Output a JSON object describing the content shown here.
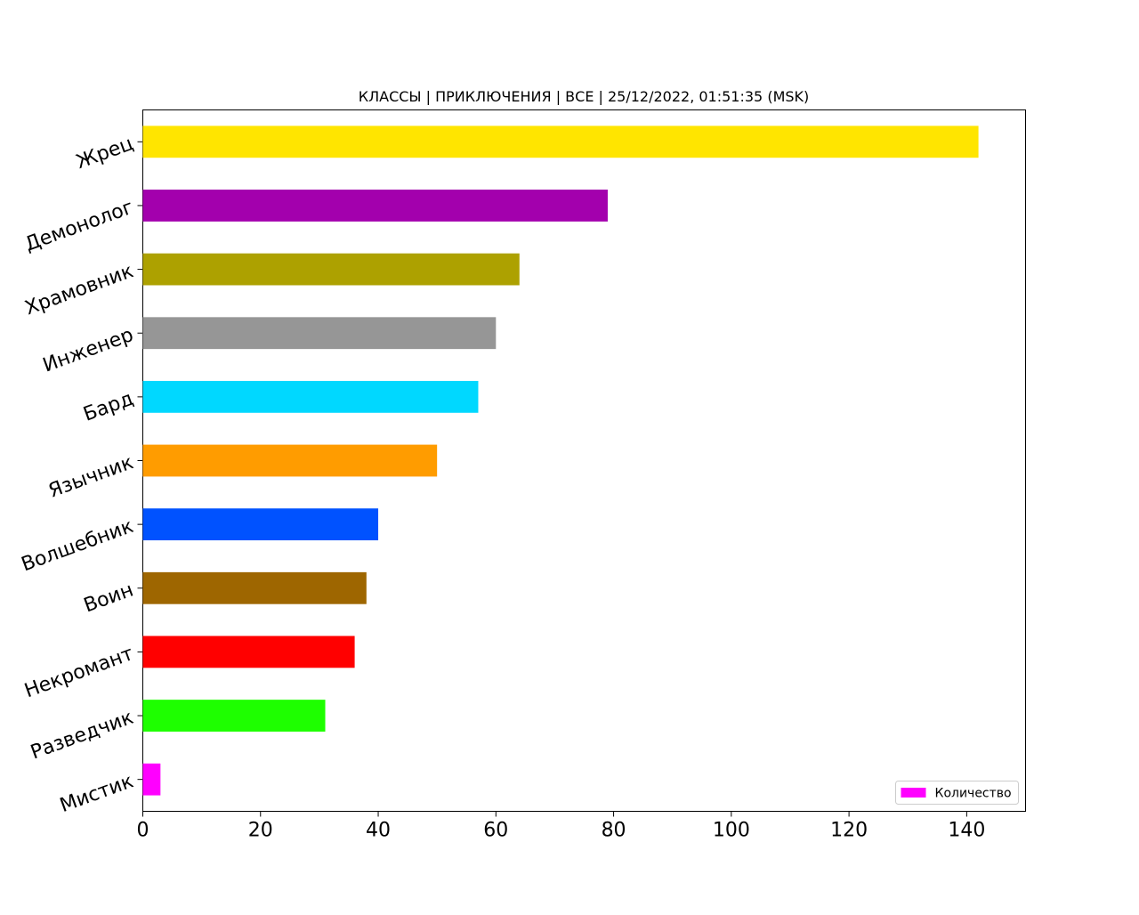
{
  "chart_data": {
    "type": "bar",
    "orientation": "horizontal",
    "title": "КЛАССЫ | ПРИКЛЮЧЕНИЯ | ВСЕ | 25/12/2022, 01:51:35 (MSK)",
    "xlabel": "",
    "ylabel": "",
    "xlim": [
      0,
      150
    ],
    "x_ticks": [
      0,
      20,
      40,
      60,
      80,
      100,
      120,
      140
    ],
    "grid": false,
    "legend": {
      "placement": "bottom-right",
      "entries": [
        {
          "label": "Количество",
          "color": "#ff00ff"
        }
      ]
    },
    "categories": [
      "Жрец",
      "Демонолог",
      "Храмовник",
      "Инженер",
      "Бард",
      "Язычник",
      "Волшебник",
      "Воин",
      "Некромант",
      "Разведчик",
      "Мистик"
    ],
    "values": [
      142,
      79,
      64,
      60,
      57,
      50,
      40,
      38,
      36,
      31,
      3
    ],
    "colors": [
      "#ffe500",
      "#a300ad",
      "#ada100",
      "#969696",
      "#00d8ff",
      "#ff9c00",
      "#0052ff",
      "#9e6600",
      "#ff0000",
      "#1eff00",
      "#ff00ff"
    ]
  }
}
